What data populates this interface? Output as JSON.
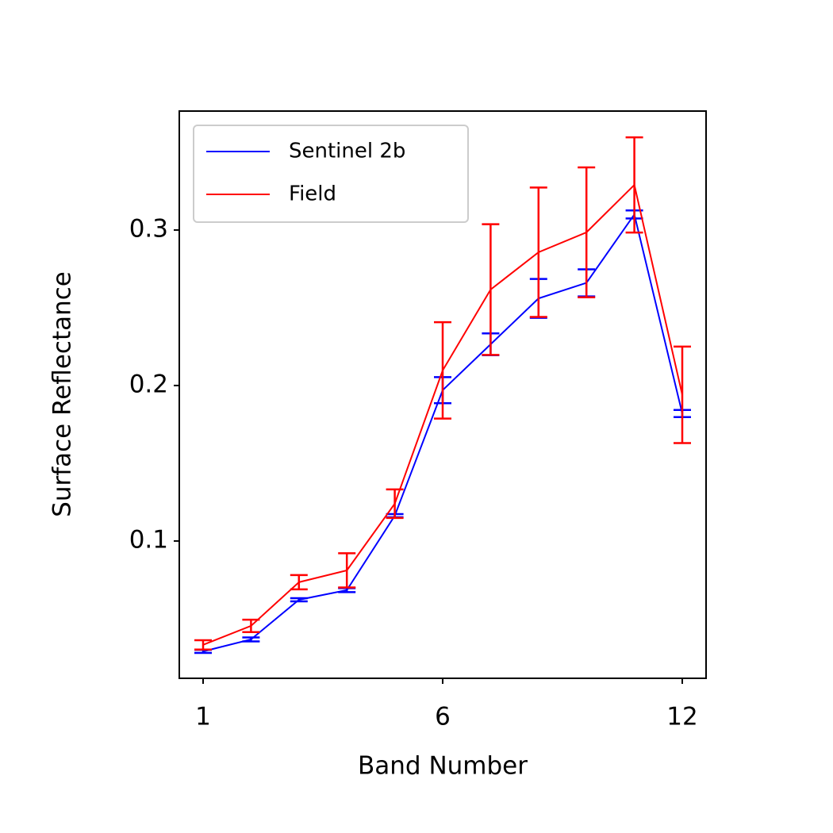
{
  "chart_data": {
    "type": "line",
    "x_label": "Band Number",
    "y_label": "Surface Reflectance",
    "categories": [
      "1",
      null,
      null,
      null,
      null,
      "6",
      null,
      null,
      null,
      null,
      "12"
    ],
    "ylim": [
      0.0117,
      0.3765
    ],
    "yticks": [
      0.1,
      0.2,
      0.3
    ],
    "grid": false,
    "legend": "upper left",
    "series": [
      {
        "name": "Sentinel 2b",
        "color": "#0000ff",
        "values": [
          0.029,
          0.0367,
          0.0622,
          0.0684,
          0.1163,
          0.197,
          0.2265,
          0.256,
          0.266,
          0.31,
          0.182
        ],
        "errors": [
          0.001,
          0.0013,
          0.001,
          0.0013,
          0.001,
          0.0084,
          0.007,
          0.0125,
          0.0087,
          0.0026,
          0.0023
        ]
      },
      {
        "name": "Field",
        "color": "#ff0000",
        "values": [
          0.0332,
          0.0454,
          0.0735,
          0.0811,
          0.124,
          0.2097,
          0.2617,
          0.2857,
          0.2985,
          0.329,
          0.194
        ],
        "errors": [
          0.003,
          0.004,
          0.0046,
          0.011,
          0.0092,
          0.031,
          0.042,
          0.0416,
          0.0418,
          0.0306,
          0.031
        ]
      }
    ]
  }
}
